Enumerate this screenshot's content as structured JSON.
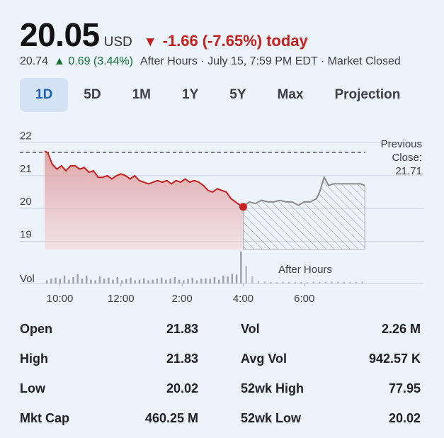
{
  "quote": {
    "price": "20.05",
    "currency": "USD",
    "change_arrow": "▼",
    "change_abs": "-1.66",
    "change_pct": "(-7.65%)",
    "change_period": "today",
    "after_hours_price": "20.74",
    "after_hours_arrow": "▲",
    "after_hours_change": "0.69 (3.44%)",
    "after_hours_label": "After Hours · July 15, 7:59 PM EDT · Market Closed"
  },
  "tabs": [
    {
      "label": "1D",
      "active": true
    },
    {
      "label": "5D",
      "active": false
    },
    {
      "label": "1M",
      "active": false
    },
    {
      "label": "1Y",
      "active": false
    },
    {
      "label": "5Y",
      "active": false
    },
    {
      "label": "Max",
      "active": false
    },
    {
      "label": "Projection",
      "active": false
    }
  ],
  "chart": {
    "y_ticks": [
      "22",
      "21",
      "20",
      "19"
    ],
    "x_ticks": [
      "10:00",
      "12:00",
      "2:00",
      "4:00",
      "6:00"
    ],
    "vol_label": "Vol",
    "prev_close_label_1": "Previous",
    "prev_close_label_2": "Close:",
    "prev_close_value": "21.71",
    "after_hours_label": "After Hours",
    "colors": {
      "down": "#c5221f",
      "after_hours_line": "#8a8a8a",
      "grid": "#c9d3de"
    }
  },
  "chart_data": {
    "type": "line",
    "ylim": [
      18.75,
      22.25
    ],
    "previous_close": 21.71,
    "regular_session": [
      [
        9.5,
        21.75
      ],
      [
        9.6,
        21.7
      ],
      [
        9.75,
        21.35
      ],
      [
        9.9,
        21.2
      ],
      [
        10.05,
        21.3
      ],
      [
        10.2,
        21.15
      ],
      [
        10.35,
        21.3
      ],
      [
        10.5,
        21.3
      ],
      [
        10.65,
        21.2
      ],
      [
        10.8,
        21.25
      ],
      [
        10.95,
        21.1
      ],
      [
        11.1,
        21.15
      ],
      [
        11.25,
        20.95
      ],
      [
        11.4,
        20.95
      ],
      [
        11.55,
        21.0
      ],
      [
        11.7,
        20.9
      ],
      [
        11.85,
        21.0
      ],
      [
        12.0,
        21.05
      ],
      [
        12.15,
        21.0
      ],
      [
        12.3,
        20.9
      ],
      [
        12.45,
        21.0
      ],
      [
        12.6,
        20.85
      ],
      [
        12.75,
        20.8
      ],
      [
        12.9,
        20.75
      ],
      [
        13.05,
        20.8
      ],
      [
        13.2,
        20.85
      ],
      [
        13.35,
        20.8
      ],
      [
        13.5,
        20.85
      ],
      [
        13.65,
        20.75
      ],
      [
        13.8,
        20.85
      ],
      [
        13.95,
        20.8
      ],
      [
        14.1,
        20.9
      ],
      [
        14.25,
        20.8
      ],
      [
        14.4,
        20.85
      ],
      [
        14.55,
        20.8
      ],
      [
        14.7,
        20.7
      ],
      [
        14.85,
        20.55
      ],
      [
        15.0,
        20.5
      ],
      [
        15.15,
        20.6
      ],
      [
        15.3,
        20.55
      ],
      [
        15.45,
        20.5
      ],
      [
        15.6,
        20.3
      ],
      [
        15.75,
        20.2
      ],
      [
        15.9,
        20.1
      ],
      [
        16.0,
        20.05
      ]
    ],
    "after_hours": [
      [
        16.0,
        20.05
      ],
      [
        16.2,
        20.2
      ],
      [
        16.4,
        20.15
      ],
      [
        16.6,
        20.25
      ],
      [
        16.8,
        20.2
      ],
      [
        17.0,
        20.2
      ],
      [
        17.2,
        20.25
      ],
      [
        17.4,
        20.2
      ],
      [
        17.6,
        20.2
      ],
      [
        17.8,
        20.1
      ],
      [
        18.0,
        20.2
      ],
      [
        18.2,
        20.2
      ],
      [
        18.4,
        20.3
      ],
      [
        18.5,
        20.5
      ],
      [
        18.65,
        20.95
      ],
      [
        18.8,
        20.7
      ],
      [
        18.95,
        20.75
      ],
      [
        19.2,
        20.75
      ],
      [
        19.5,
        20.75
      ],
      [
        19.85,
        20.75
      ],
      [
        19.98,
        20.7
      ]
    ],
    "volume_relative": [
      0.1,
      0.15,
      0.18,
      0.14,
      0.25,
      0.12,
      0.2,
      0.3,
      0.15,
      0.25,
      0.12,
      0.1,
      0.22,
      0.15,
      0.18,
      0.12,
      0.2,
      0.1,
      0.14,
      0.18,
      0.1,
      0.12,
      0.16,
      0.1,
      0.12,
      0.15,
      0.18,
      0.12,
      0.15,
      0.2,
      0.12,
      0.1,
      0.14,
      0.18,
      0.1,
      0.15,
      0.16,
      0.15,
      0.2,
      0.12,
      0.25,
      0.22,
      0.3,
      0.28,
      1.0
    ],
    "after_hours_volume_relative": [
      0.55,
      0.22,
      0.08,
      0.06,
      0.05,
      0.04,
      0.05,
      0.05,
      0.04,
      0.05,
      0.04,
      0.06,
      0.05,
      0.05,
      0.06,
      0.05,
      0.05,
      0.04,
      0.05,
      0.06
    ]
  },
  "stats": [
    {
      "label_l": "Open",
      "value_l": "21.83",
      "label_r": "Vol",
      "value_r": "2.26 M"
    },
    {
      "label_l": "High",
      "value_l": "21.83",
      "label_r": "Avg Vol",
      "value_r": "942.57 K"
    },
    {
      "label_l": "Low",
      "value_l": "20.02",
      "label_r": "52wk High",
      "value_r": "77.95"
    },
    {
      "label_l": "Mkt Cap",
      "value_l": "460.25 M",
      "label_r": "52wk Low",
      "value_r": "20.02"
    }
  ]
}
